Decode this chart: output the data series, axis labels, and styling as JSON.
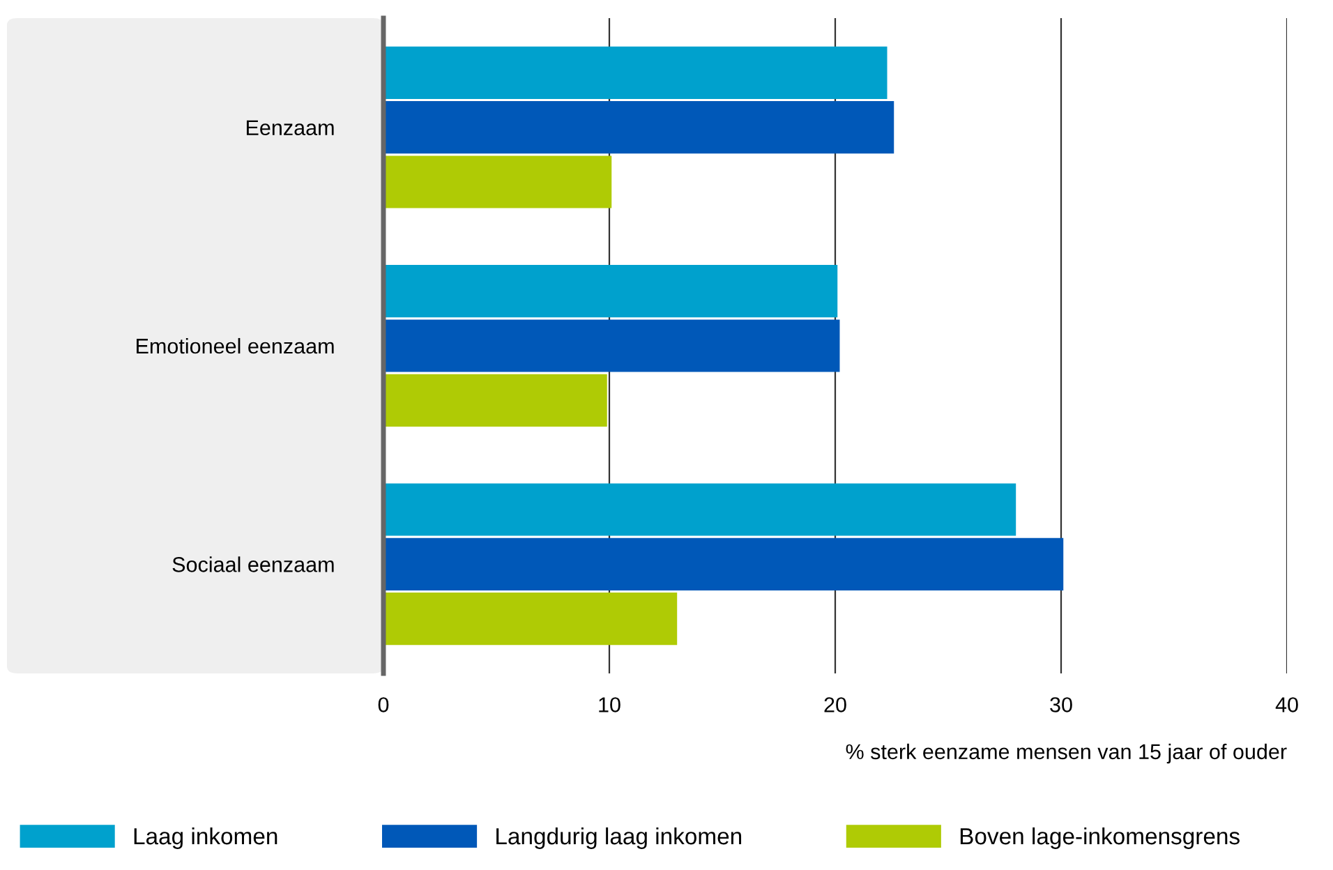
{
  "chart_data": {
    "type": "bar",
    "orientation": "horizontal",
    "categories": [
      "Eenzaam",
      "Emotioneel eenzaam",
      "Sociaal eenzaam"
    ],
    "series": [
      {
        "name": "Laag inkomen",
        "color": "#00a1cd",
        "values": [
          22.3,
          20.1,
          28.0
        ]
      },
      {
        "name": "Langdurig laag inkomen",
        "color": "#0058b8",
        "values": [
          22.6,
          20.2,
          30.1
        ]
      },
      {
        "name": "Boven lage-inkomensgrens",
        "color": "#afcb05",
        "values": [
          10.1,
          9.9,
          13.0
        ]
      }
    ],
    "xlabel": "% sterk eenzame mensen van 15 jaar of ouder",
    "xlim": [
      0,
      40
    ],
    "xticks": [
      0,
      10,
      20,
      30,
      40
    ],
    "grid": "x",
    "legend": "bottom"
  }
}
